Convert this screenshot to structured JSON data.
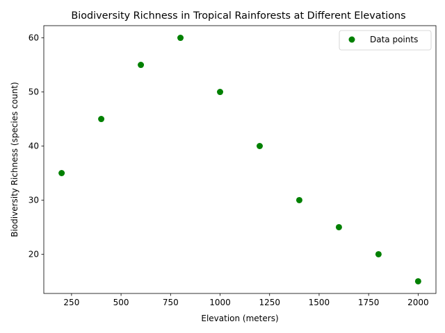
{
  "chart_data": {
    "type": "scatter",
    "title": "Biodiversity Richness in Tropical Rainforests at Different Elevations",
    "xlabel": "Elevation (meters)",
    "ylabel": "Biodiversity Richness (species count)",
    "xlim": [
      110,
      2090
    ],
    "ylim": [
      12.75,
      62.25
    ],
    "xticks": [
      250,
      500,
      750,
      1000,
      1250,
      1500,
      1750,
      2000
    ],
    "yticks": [
      20,
      30,
      40,
      50,
      60
    ],
    "grid": false,
    "legend_position": "upper right",
    "series": [
      {
        "name": "Data points",
        "color": "#008000",
        "marker": "circle",
        "x": [
          200,
          400,
          600,
          800,
          1000,
          1200,
          1400,
          1600,
          1800,
          2000
        ],
        "y": [
          35,
          45,
          55,
          60,
          50,
          40,
          30,
          25,
          20,
          15
        ]
      }
    ]
  }
}
